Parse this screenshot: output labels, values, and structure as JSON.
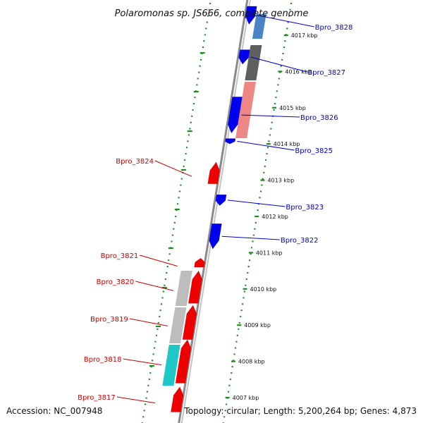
{
  "title": "Polaromonas sp. JS666, complete genome",
  "footer": {
    "accession": "Accession: NC_007948",
    "topology": "Topology: circular; Length: 5,200,264 bp; Genes: 4,873"
  },
  "colors": {
    "backbone": "#8a8a8a",
    "outer_dots": "#1f8a1f",
    "forward_gene": "#0000ee",
    "reverse_gene": "#ee0000",
    "forward_label": "#0000cc",
    "reverse_label": "#cc0000"
  },
  "ruler": [
    {
      "kbp": 4017,
      "label": "4017 kbp"
    },
    {
      "kbp": 4016,
      "label": "4016 kbp"
    },
    {
      "kbp": 4015,
      "label": "4015 kbp"
    },
    {
      "kbp": 4014,
      "label": "4014 kbp"
    },
    {
      "kbp": 4013,
      "label": "4013 kbp"
    },
    {
      "kbp": 4012,
      "label": "4012 kbp"
    },
    {
      "kbp": 4011,
      "label": "4011 kbp"
    },
    {
      "kbp": 4010,
      "label": "4010 kbp"
    },
    {
      "kbp": 4009,
      "label": "4009 kbp"
    },
    {
      "kbp": 4008,
      "label": "4008 kbp"
    },
    {
      "kbp": 4007,
      "label": "4007 kbp"
    }
  ],
  "forward_genes": [
    {
      "label": "Bpro_3828",
      "start": 4017.3,
      "end": 4017.8
    },
    {
      "label": "Bpro_3827",
      "start": 4016.2,
      "end": 4016.6
    },
    {
      "label": "Bpro_3826",
      "start": 4014.3,
      "end": 4015.3
    },
    {
      "label": "Bpro_3825",
      "start": 4014.0,
      "end": 4014.15
    },
    {
      "label": "Bpro_3823",
      "start": 4012.3,
      "end": 4012.6
    },
    {
      "label": "Bpro_3822",
      "start": 4011.1,
      "end": 4011.8
    }
  ],
  "reverse_genes": [
    {
      "label": "Bpro_3824",
      "start": 4012.9,
      "end": 4013.5
    },
    {
      "label": "Bpro_3821",
      "start": 4010.6,
      "end": 4010.85
    },
    {
      "label": "Bpro_3820",
      "start": 4009.6,
      "end": 4010.5
    },
    {
      "label": "Bpro_3819",
      "start": 4008.6,
      "end": 4009.55
    },
    {
      "label": "Bpro_3818",
      "start": 4007.4,
      "end": 4008.6
    },
    {
      "label": "Bpro_3817",
      "start": 4006.6,
      "end": 4007.3
    }
  ]
}
